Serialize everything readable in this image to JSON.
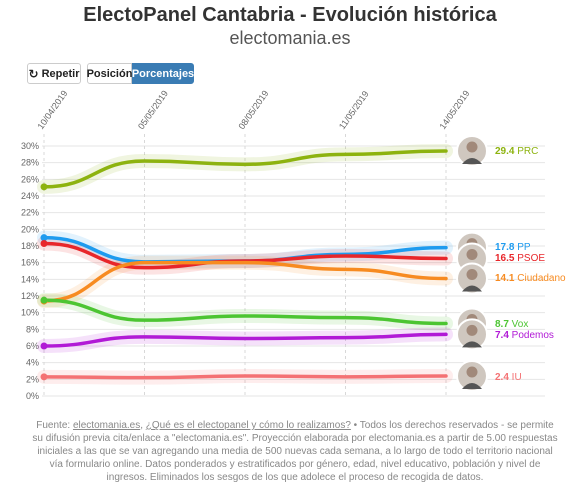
{
  "header": {
    "title": "ElectoPanel Cantabria - Evolución histórica",
    "subtitle": "electomania.es"
  },
  "controls": {
    "repeat_label": "Repetir",
    "repeat_icon": "replay-icon",
    "position_label": "Posición",
    "percent_label": "Porcentajes"
  },
  "chart_data": {
    "type": "line",
    "x": [
      "10/04/2019",
      "05/05/2019",
      "08/05/2019",
      "11/05/2019",
      "14/05/2019"
    ],
    "x_tick_labels": [
      "10/04/2019",
      "05/05/2019",
      "08/05/2019",
      "11/05/2019",
      "14/05/2019"
    ],
    "ylim": [
      0,
      30
    ],
    "y_ticks": [
      "0%",
      "2%",
      "4%",
      "6%",
      "8%",
      "10%",
      "12%",
      "14%",
      "16%",
      "18%",
      "20%",
      "22%",
      "24%",
      "26%",
      "28%",
      "30%"
    ],
    "grid": true,
    "series": [
      {
        "name": "PRC",
        "label": "29.4 PRC",
        "value_label": "29.4",
        "color": "#8db30f",
        "values": [
          25.1,
          28.2,
          27.8,
          29.0,
          29.4
        ]
      },
      {
        "name": "PP",
        "label": "17.8 PP",
        "value_label": "17.8",
        "color": "#1e9bef",
        "values": [
          19.0,
          16.1,
          16.2,
          17.0,
          17.8
        ]
      },
      {
        "name": "PSOE",
        "label": "16.5 PSOE",
        "value_label": "16.5",
        "color": "#e8262a",
        "values": [
          18.3,
          15.4,
          16.2,
          16.8,
          16.5
        ]
      },
      {
        "name": "Ciudadano",
        "label": "14.1 Ciudadano",
        "value_label": "14.1",
        "color": "#f78b21",
        "values": [
          11.4,
          16.0,
          16.0,
          15.2,
          14.1
        ]
      },
      {
        "name": "Vox",
        "label": "8.7 Vox",
        "value_label": "8.7",
        "color": "#4cc532",
        "values": [
          11.5,
          9.1,
          9.6,
          9.4,
          8.7
        ]
      },
      {
        "name": "Podemos",
        "label": "7.4 Podemos",
        "value_label": "7.4",
        "color": "#b11ad6",
        "values": [
          6.0,
          7.1,
          6.9,
          7.0,
          7.4
        ]
      },
      {
        "name": "IU",
        "label": "2.4 IU",
        "value_label": "2.4",
        "color": "#f47274",
        "values": [
          2.3,
          2.2,
          2.4,
          2.3,
          2.4
        ]
      }
    ]
  },
  "footer": {
    "source_prefix": "Fuente: ",
    "source_link": "electomania.es",
    "sep": ", ",
    "method_link": "¿Qué es el electopanel y cómo lo realizamos?",
    "text": " • Todos los derechos reservados - se permite su difusión previa cita/enlace a \"electomania.es\". Proyección elaborada por electomania.es a partir de 5.00 respuestas iniciales a las que se van agregando una media de 500 nuevas cada semana, a lo largo de todo el territorio nacional vía formulario online. Datos ponderados y estratificados por género, edad, nivel educativo, población y nivel de ingresos. Eliminados los sesgos de los que adolece el proceso de recogida de datos."
  }
}
